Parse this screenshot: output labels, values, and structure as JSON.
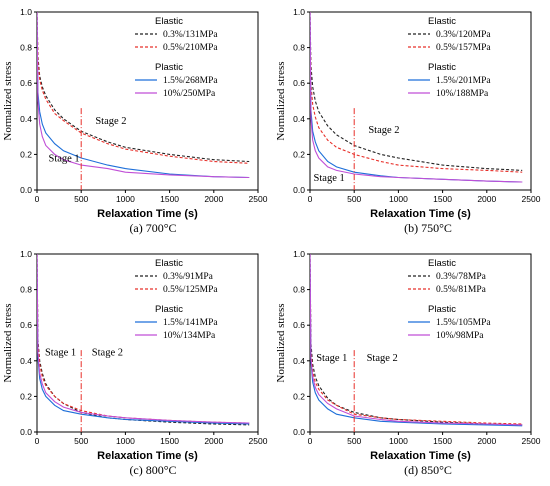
{
  "chart_data": [
    {
      "type": "line",
      "caption": "(a)  700°C",
      "xlabel": "Relaxation Time (s)",
      "ylabel": "Normalized stress",
      "xlim": [
        0,
        2500
      ],
      "ylim": [
        0,
        1.0
      ],
      "xticks": [
        "0",
        "500",
        "1000",
        "1500",
        "2000",
        "2500"
      ],
      "yticks": [
        "0.0",
        "0.2",
        "0.4",
        "0.6",
        "0.8",
        "1.0"
      ],
      "legend_elastic_title": "Elastic",
      "legend_plastic_title": "Plastic",
      "stage1_label": "Stage 1",
      "stage2_label": "Stage 2",
      "stage_boundary_x": 500,
      "stage1_label_pos": [
        130,
        0.16
      ],
      "stage2_label_pos": [
        660,
        0.37
      ],
      "series": [
        {
          "name": "0.3%/131MPa",
          "color": "#222222",
          "style": "dash",
          "group": "Elastic",
          "x": [
            0,
            10,
            30,
            60,
            100,
            200,
            300,
            500,
            800,
            1000,
            1500,
            2000,
            2400
          ],
          "y": [
            1.0,
            0.75,
            0.64,
            0.58,
            0.53,
            0.45,
            0.4,
            0.33,
            0.27,
            0.24,
            0.2,
            0.17,
            0.16
          ]
        },
        {
          "name": "0.5%/210MPa",
          "color": "#e8302a",
          "style": "dash",
          "group": "Elastic",
          "x": [
            0,
            10,
            30,
            60,
            100,
            200,
            300,
            500,
            800,
            1000,
            1500,
            2000,
            2400
          ],
          "y": [
            1.0,
            0.73,
            0.62,
            0.56,
            0.51,
            0.43,
            0.39,
            0.32,
            0.26,
            0.23,
            0.19,
            0.16,
            0.15
          ]
        },
        {
          "name": "1.5%/268MPa",
          "color": "#1e6fd9",
          "style": "solid",
          "group": "Plastic",
          "x": [
            0,
            10,
            30,
            60,
            100,
            200,
            300,
            500,
            800,
            1000,
            1500,
            2000,
            2400
          ],
          "y": [
            1.0,
            0.55,
            0.44,
            0.37,
            0.32,
            0.26,
            0.22,
            0.18,
            0.14,
            0.12,
            0.09,
            0.075,
            0.07
          ]
        },
        {
          "name": "10%/250MPa",
          "color": "#c04fd6",
          "style": "solid",
          "group": "Plastic",
          "x": [
            0,
            10,
            30,
            60,
            100,
            200,
            300,
            500,
            800,
            1000,
            1500,
            2000,
            2400
          ],
          "y": [
            1.0,
            0.5,
            0.37,
            0.3,
            0.25,
            0.2,
            0.17,
            0.14,
            0.12,
            0.1,
            0.085,
            0.075,
            0.07
          ]
        }
      ]
    },
    {
      "type": "line",
      "caption": "(b)  750°C",
      "xlabel": "Relaxation Time (s)",
      "ylabel": "Normalized stress",
      "xlim": [
        0,
        2500
      ],
      "ylim": [
        0,
        1.0
      ],
      "xticks": [
        "0",
        "500",
        "1000",
        "1500",
        "2000",
        "2500"
      ],
      "yticks": [
        "0.0",
        "0.2",
        "0.4",
        "0.6",
        "0.8",
        "1.0"
      ],
      "legend_elastic_title": "Elastic",
      "legend_plastic_title": "Plastic",
      "stage1_label": "Stage 1",
      "stage2_label": "Stage 2",
      "stage_boundary_x": 500,
      "stage1_label_pos": [
        40,
        0.05
      ],
      "stage2_label_pos": [
        660,
        0.32
      ],
      "series": [
        {
          "name": "0.3%/120MPa",
          "color": "#222222",
          "style": "dash",
          "group": "Elastic",
          "x": [
            0,
            10,
            30,
            60,
            100,
            200,
            300,
            500,
            800,
            1000,
            1500,
            2000,
            2400
          ],
          "y": [
            1.0,
            0.7,
            0.58,
            0.5,
            0.44,
            0.36,
            0.31,
            0.25,
            0.2,
            0.18,
            0.14,
            0.12,
            0.11
          ]
        },
        {
          "name": "0.5%/157MPa",
          "color": "#e8302a",
          "style": "dash",
          "group": "Elastic",
          "x": [
            0,
            10,
            30,
            60,
            100,
            200,
            300,
            500,
            800,
            1000,
            1500,
            2000,
            2400
          ],
          "y": [
            1.0,
            0.6,
            0.48,
            0.41,
            0.35,
            0.28,
            0.24,
            0.2,
            0.16,
            0.14,
            0.12,
            0.11,
            0.1
          ]
        },
        {
          "name": "1.5%/201MPa",
          "color": "#1e6fd9",
          "style": "solid",
          "group": "Plastic",
          "x": [
            0,
            10,
            30,
            60,
            100,
            200,
            300,
            500,
            800,
            1000,
            1500,
            2000,
            2400
          ],
          "y": [
            1.0,
            0.45,
            0.33,
            0.27,
            0.22,
            0.16,
            0.13,
            0.1,
            0.08,
            0.07,
            0.06,
            0.05,
            0.045
          ]
        },
        {
          "name": "10%/188MPa",
          "color": "#c04fd6",
          "style": "solid",
          "group": "Plastic",
          "x": [
            0,
            10,
            30,
            60,
            100,
            200,
            300,
            500,
            800,
            1000,
            1500,
            2000,
            2400
          ],
          "y": [
            1.0,
            0.4,
            0.28,
            0.22,
            0.18,
            0.13,
            0.11,
            0.09,
            0.075,
            0.07,
            0.06,
            0.05,
            0.045
          ]
        }
      ]
    },
    {
      "type": "line",
      "caption": "(c)  800°C",
      "xlabel": "Relaxation Time (s)",
      "ylabel": "Normalized stress",
      "xlim": [
        0,
        2500
      ],
      "ylim": [
        0,
        1.0
      ],
      "xticks": [
        "0",
        "500",
        "1000",
        "1500",
        "2000",
        "2500"
      ],
      "yticks": [
        "0.0",
        "0.2",
        "0.4",
        "0.6",
        "0.8",
        "1.0"
      ],
      "legend_elastic_title": "Elastic",
      "legend_plastic_title": "Plastic",
      "stage1_label": "Stage 1",
      "stage2_label": "Stage 2",
      "stage_boundary_x": 500,
      "stage1_label_pos": [
        90,
        0.43
      ],
      "stage2_label_pos": [
        620,
        0.43
      ],
      "series": [
        {
          "name": "0.3%/91MPa",
          "color": "#222222",
          "style": "dash",
          "group": "Elastic",
          "x": [
            0,
            10,
            30,
            60,
            100,
            200,
            300,
            500,
            800,
            1000,
            1500,
            2000,
            2400
          ],
          "y": [
            1.0,
            0.52,
            0.4,
            0.33,
            0.27,
            0.2,
            0.16,
            0.11,
            0.08,
            0.07,
            0.055,
            0.045,
            0.04
          ]
        },
        {
          "name": "0.5%/125MPa",
          "color": "#e8302a",
          "style": "dash",
          "group": "Elastic",
          "x": [
            0,
            10,
            30,
            60,
            100,
            200,
            300,
            500,
            800,
            1000,
            1500,
            2000,
            2400
          ],
          "y": [
            1.0,
            0.5,
            0.38,
            0.31,
            0.26,
            0.2,
            0.16,
            0.12,
            0.09,
            0.08,
            0.065,
            0.055,
            0.05
          ]
        },
        {
          "name": "1.5%/141MPa",
          "color": "#1e6fd9",
          "style": "solid",
          "group": "Plastic",
          "x": [
            0,
            10,
            30,
            60,
            100,
            200,
            300,
            500,
            800,
            1000,
            1500,
            2000,
            2400
          ],
          "y": [
            1.0,
            0.42,
            0.3,
            0.24,
            0.2,
            0.15,
            0.12,
            0.1,
            0.08,
            0.07,
            0.06,
            0.05,
            0.045
          ]
        },
        {
          "name": "10%/134MPa",
          "color": "#c04fd6",
          "style": "solid",
          "group": "Plastic",
          "x": [
            0,
            10,
            30,
            60,
            100,
            200,
            300,
            500,
            800,
            1000,
            1500,
            2000,
            2400
          ],
          "y": [
            1.0,
            0.45,
            0.33,
            0.27,
            0.22,
            0.17,
            0.14,
            0.11,
            0.09,
            0.08,
            0.065,
            0.055,
            0.05
          ]
        }
      ]
    },
    {
      "type": "line",
      "caption": "(d)  850°C",
      "xlabel": "Relaxation Time (s)",
      "ylabel": "Normalized stress",
      "xlim": [
        0,
        2500
      ],
      "ylim": [
        0,
        1.0
      ],
      "xticks": [
        "0",
        "500",
        "1000",
        "1500",
        "2000",
        "2500"
      ],
      "yticks": [
        "0.0",
        "0.2",
        "0.4",
        "0.6",
        "0.8",
        "1.0"
      ],
      "legend_elastic_title": "Elastic",
      "legend_plastic_title": "Plastic",
      "stage1_label": "Stage 1",
      "stage2_label": "Stage 2",
      "stage_boundary_x": 500,
      "stage1_label_pos": [
        70,
        0.4
      ],
      "stage2_label_pos": [
        640,
        0.4
      ],
      "series": [
        {
          "name": "0.3%/78MPa",
          "color": "#222222",
          "style": "dash",
          "group": "Elastic",
          "x": [
            0,
            10,
            30,
            60,
            100,
            200,
            300,
            500,
            800,
            1000,
            1500,
            2000,
            2400
          ],
          "y": [
            1.0,
            0.5,
            0.38,
            0.31,
            0.26,
            0.19,
            0.15,
            0.11,
            0.08,
            0.07,
            0.055,
            0.045,
            0.04
          ]
        },
        {
          "name": "0.5%/81MPa",
          "color": "#e8302a",
          "style": "dash",
          "group": "Elastic",
          "x": [
            0,
            10,
            30,
            60,
            100,
            200,
            300,
            500,
            800,
            1000,
            1500,
            2000,
            2400
          ],
          "y": [
            1.0,
            0.45,
            0.34,
            0.28,
            0.24,
            0.18,
            0.15,
            0.1,
            0.08,
            0.07,
            0.06,
            0.05,
            0.045
          ]
        },
        {
          "name": "1.5%/105MPa",
          "color": "#1e6fd9",
          "style": "solid",
          "group": "Plastic",
          "x": [
            0,
            10,
            30,
            60,
            100,
            200,
            300,
            500,
            800,
            1000,
            1500,
            2000,
            2400
          ],
          "y": [
            1.0,
            0.4,
            0.28,
            0.22,
            0.18,
            0.13,
            0.1,
            0.08,
            0.06,
            0.055,
            0.045,
            0.04,
            0.035
          ]
        },
        {
          "name": "10%/98MPa",
          "color": "#c04fd6",
          "style": "solid",
          "group": "Plastic",
          "x": [
            0,
            10,
            30,
            60,
            100,
            200,
            300,
            500,
            800,
            1000,
            1500,
            2000,
            2400
          ],
          "y": [
            1.0,
            0.42,
            0.31,
            0.25,
            0.21,
            0.16,
            0.13,
            0.09,
            0.07,
            0.06,
            0.05,
            0.045,
            0.04
          ]
        }
      ]
    }
  ]
}
